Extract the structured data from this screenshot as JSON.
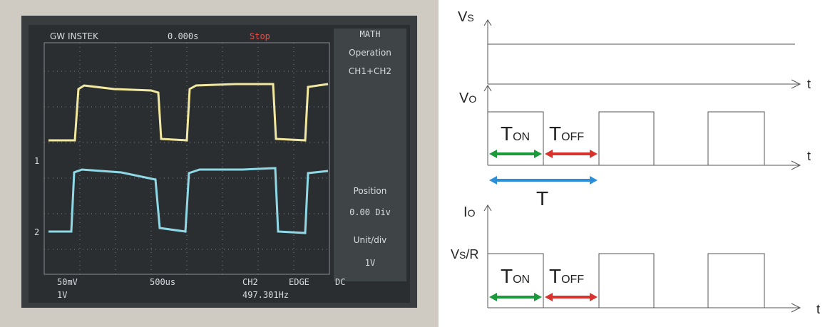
{
  "scope": {
    "brand": "GW INSTEK",
    "time_offset": "0.000s",
    "status": "Stop",
    "channel_markers": [
      "1",
      "2"
    ],
    "menu": {
      "title": "MATH",
      "items": [
        "Operation",
        "CH1+CH2",
        "Position",
        "0.00 Div",
        "Unit/div",
        "1V"
      ]
    },
    "status_bar": {
      "ch1_scale": "50mV",
      "ch2_scale": "1V",
      "timebase": "500us",
      "trigger_source": "CH2",
      "trigger_type": "EDGE",
      "coupling": "DC",
      "frequency": "497.301Hz"
    }
  },
  "diagram": {
    "vs_label": {
      "base": "V",
      "sub": "S"
    },
    "vo_label": {
      "base": "V",
      "sub": "O"
    },
    "io_label": {
      "base": "I",
      "sub": "O"
    },
    "level_label": {
      "base": "V",
      "sub": "S",
      "rest": "/R"
    },
    "time_axis_label": "t",
    "ton_label": {
      "base": "T",
      "sub": "ON"
    },
    "toff_label": {
      "base": "T",
      "sub": "OFF"
    },
    "period_label": "T"
  }
}
